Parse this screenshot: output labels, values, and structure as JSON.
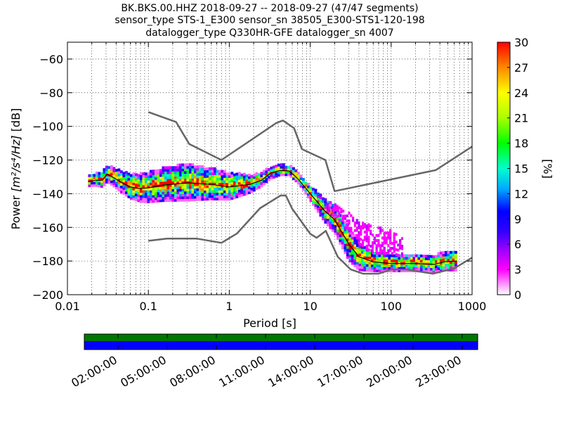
{
  "chart_data": {
    "type": "heatmap",
    "title_lines": [
      "BK.BKS.00.HHZ   2018-09-27 -- 2018-09-27  (47/47 segments)",
      "sensor_type STS-1_E300 sensor_sn 38505_E300-STS1-120-198",
      "datalogger_type Q330HR-GFE datalogger_sn 4007"
    ],
    "xlabel": "Period [s]",
    "ylabel_prefix": "Power ",
    "ylabel_units": "[m²/s⁴/Hz]",
    "ylabel_suffix": " [dB]",
    "x_scale": "log",
    "xlim": [
      0.01,
      1000
    ],
    "ylim": [
      -200,
      -50
    ],
    "x_ticks": [
      {
        "value": 0.01,
        "label": "0.01"
      },
      {
        "value": 0.1,
        "label": "0.1"
      },
      {
        "value": 1,
        "label": "1"
      },
      {
        "value": 10,
        "label": "10"
      },
      {
        "value": 100,
        "label": "100"
      },
      {
        "value": 1000,
        "label": "1000"
      }
    ],
    "y_ticks": [
      {
        "value": -60,
        "label": "−60"
      },
      {
        "value": -80,
        "label": "−80"
      },
      {
        "value": -100,
        "label": "−100"
      },
      {
        "value": -120,
        "label": "−120"
      },
      {
        "value": -140,
        "label": "−140"
      },
      {
        "value": -160,
        "label": "−160"
      },
      {
        "value": -180,
        "label": "−180"
      },
      {
        "value": -200,
        "label": "−200"
      }
    ],
    "grid": true,
    "noise_models": {
      "color": "#666666",
      "high_noise_model": [
        [
          0.1,
          -91.5
        ],
        [
          0.22,
          -97.4
        ],
        [
          0.32,
          -110.5
        ],
        [
          0.8,
          -120
        ],
        [
          3.8,
          -98
        ],
        [
          4.6,
          -96.5
        ],
        [
          6.3,
          -101
        ],
        [
          7.9,
          -113.5
        ],
        [
          15.4,
          -120
        ],
        [
          20,
          -138.5
        ],
        [
          354.8,
          -126
        ],
        [
          1000,
          -112
        ]
      ],
      "low_noise_model": [
        [
          0.1,
          -168
        ],
        [
          0.17,
          -166.7
        ],
        [
          0.4,
          -166.7
        ],
        [
          0.8,
          -169.2
        ],
        [
          1.24,
          -163.7
        ],
        [
          2.4,
          -148.6
        ],
        [
          4.3,
          -141.1
        ],
        [
          5.0,
          -141.1
        ],
        [
          6.0,
          -149
        ],
        [
          10,
          -163.8
        ],
        [
          12,
          -166.2
        ],
        [
          15.6,
          -162.1
        ],
        [
          21.9,
          -177.5
        ],
        [
          31.6,
          -185
        ],
        [
          45,
          -187.5
        ],
        [
          70,
          -187.5
        ],
        [
          101,
          -185
        ],
        [
          154,
          -185
        ],
        [
          328,
          -187.5
        ],
        [
          600,
          -184.4
        ],
        [
          1000,
          -178
        ]
      ]
    },
    "psd_band": {
      "median": [
        [
          0.018,
          -133
        ],
        [
          0.022,
          -132
        ],
        [
          0.027,
          -132
        ],
        [
          0.031,
          -128.5
        ],
        [
          0.036,
          -130
        ],
        [
          0.045,
          -133
        ],
        [
          0.06,
          -136
        ],
        [
          0.08,
          -137
        ],
        [
          0.1,
          -136.5
        ],
        [
          0.15,
          -135
        ],
        [
          0.3,
          -133.5
        ],
        [
          0.6,
          -134.5
        ],
        [
          1,
          -136
        ],
        [
          1.8,
          -134.5
        ],
        [
          2.5,
          -132
        ],
        [
          3.2,
          -128
        ],
        [
          4.2,
          -126.2
        ],
        [
          5.5,
          -126.5
        ],
        [
          7,
          -131
        ],
        [
          10,
          -140
        ],
        [
          15,
          -150
        ],
        [
          20,
          -155.5
        ],
        [
          30,
          -170
        ],
        [
          40,
          -177.5
        ],
        [
          60,
          -180.5
        ],
        [
          100,
          -181.5
        ],
        [
          200,
          -181.5
        ],
        [
          340,
          -182
        ],
        [
          450,
          -180.5
        ],
        [
          650,
          -180
        ]
      ],
      "width_db": [
        [
          0.018,
          3
        ],
        [
          0.1,
          9
        ],
        [
          0.3,
          11
        ],
        [
          1,
          8
        ],
        [
          2.5,
          4
        ],
        [
          5,
          3
        ],
        [
          8,
          3
        ],
        [
          15,
          7
        ],
        [
          30,
          10
        ],
        [
          60,
          6
        ],
        [
          100,
          5
        ],
        [
          300,
          5
        ],
        [
          650,
          6
        ]
      ]
    },
    "outlier_cloud": {
      "color": "#ff00ff",
      "upper": [
        [
          15,
          -146
        ],
        [
          25,
          -148
        ],
        [
          40,
          -157
        ],
        [
          60,
          -160
        ],
        [
          100,
          -162
        ],
        [
          140,
          -166
        ]
      ],
      "lower": [
        [
          15,
          -150
        ],
        [
          25,
          -158
        ],
        [
          40,
          -170
        ],
        [
          60,
          -176
        ],
        [
          100,
          -176
        ],
        [
          140,
          -178
        ]
      ]
    },
    "colorbar": {
      "label": "[%]",
      "range": [
        0,
        30
      ],
      "ticks": [
        {
          "value": 0,
          "label": "0"
        },
        {
          "value": 3,
          "label": "3"
        },
        {
          "value": 6,
          "label": "6"
        },
        {
          "value": 9,
          "label": "9"
        },
        {
          "value": 12,
          "label": "12"
        },
        {
          "value": 15,
          "label": "15"
        },
        {
          "value": 18,
          "label": "18"
        },
        {
          "value": 21,
          "label": "21"
        },
        {
          "value": 24,
          "label": "24"
        },
        {
          "value": 27,
          "label": "27"
        },
        {
          "value": 30,
          "label": "30"
        }
      ],
      "stops": [
        [
          0,
          "#ffffff"
        ],
        [
          0.1,
          "#ff00ff"
        ],
        [
          0.18,
          "#9900ff"
        ],
        [
          0.25,
          "#3300ff"
        ],
        [
          0.33,
          "#0000ff"
        ],
        [
          0.42,
          "#00aaff"
        ],
        [
          0.5,
          "#00ffcc"
        ],
        [
          0.6,
          "#00ff00"
        ],
        [
          0.7,
          "#aaff00"
        ],
        [
          0.8,
          "#ffff00"
        ],
        [
          0.9,
          "#ff8800"
        ],
        [
          1,
          "#ff0000"
        ]
      ]
    },
    "coverage": {
      "colors": {
        "top": "#007700",
        "bottom": "#0000ff"
      },
      "time_labels": [
        "02:00:00",
        "05:00:00",
        "08:00:00",
        "11:00:00",
        "14:00:00",
        "17:00:00",
        "20:00:00",
        "23:00:00"
      ]
    }
  }
}
